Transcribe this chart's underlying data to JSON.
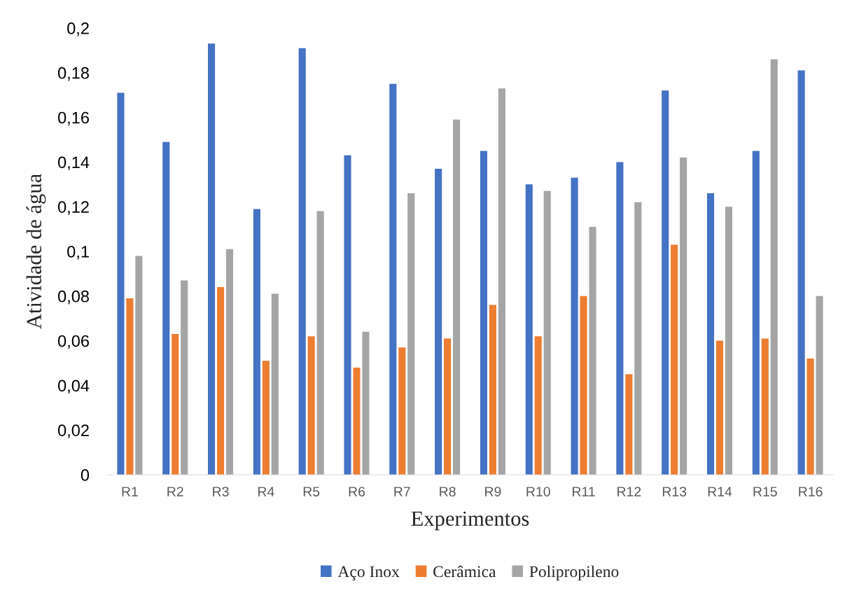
{
  "chart_data": {
    "type": "bar",
    "xlabel": "Experimentos",
    "ylabel": "Atividade de água",
    "categories": [
      "R1",
      "R2",
      "R3",
      "R4",
      "R5",
      "R6",
      "R7",
      "R8",
      "R9",
      "R10",
      "R11",
      "R12",
      "R13",
      "R14",
      "R15",
      "R16"
    ],
    "series": [
      {
        "name": "Aço Inox",
        "color": "#4472c4",
        "values": [
          0.171,
          0.149,
          0.193,
          0.119,
          0.191,
          0.143,
          0.175,
          0.137,
          0.145,
          0.13,
          0.133,
          0.14,
          0.172,
          0.126,
          0.145,
          0.181
        ]
      },
      {
        "name": "Cerâmica",
        "color": "#ed7d31",
        "values": [
          0.079,
          0.063,
          0.084,
          0.051,
          0.062,
          0.048,
          0.057,
          0.061,
          0.076,
          0.062,
          0.08,
          0.045,
          0.103,
          0.06,
          0.061,
          0.052
        ]
      },
      {
        "name": "Polipropileno",
        "color": "#a5a5a5",
        "values": [
          0.098,
          0.087,
          0.101,
          0.081,
          0.118,
          0.064,
          0.126,
          0.159,
          0.173,
          0.127,
          0.111,
          0.122,
          0.142,
          0.12,
          0.186,
          0.08
        ]
      }
    ],
    "ylim": [
      0,
      0.2
    ],
    "yticks": [
      {
        "value": 0,
        "label": "0"
      },
      {
        "value": 0.02,
        "label": "0,02"
      },
      {
        "value": 0.04,
        "label": "0,04"
      },
      {
        "value": 0.06,
        "label": "0,06"
      },
      {
        "value": 0.08,
        "label": "0,08"
      },
      {
        "value": 0.1,
        "label": "0,1"
      },
      {
        "value": 0.12,
        "label": "0,12"
      },
      {
        "value": 0.14,
        "label": "0,14"
      },
      {
        "value": 0.16,
        "label": "0,16"
      },
      {
        "value": 0.18,
        "label": "0,18"
      },
      {
        "value": 0.2,
        "label": "0,2"
      }
    ],
    "grid": false,
    "legend": "bottom"
  }
}
